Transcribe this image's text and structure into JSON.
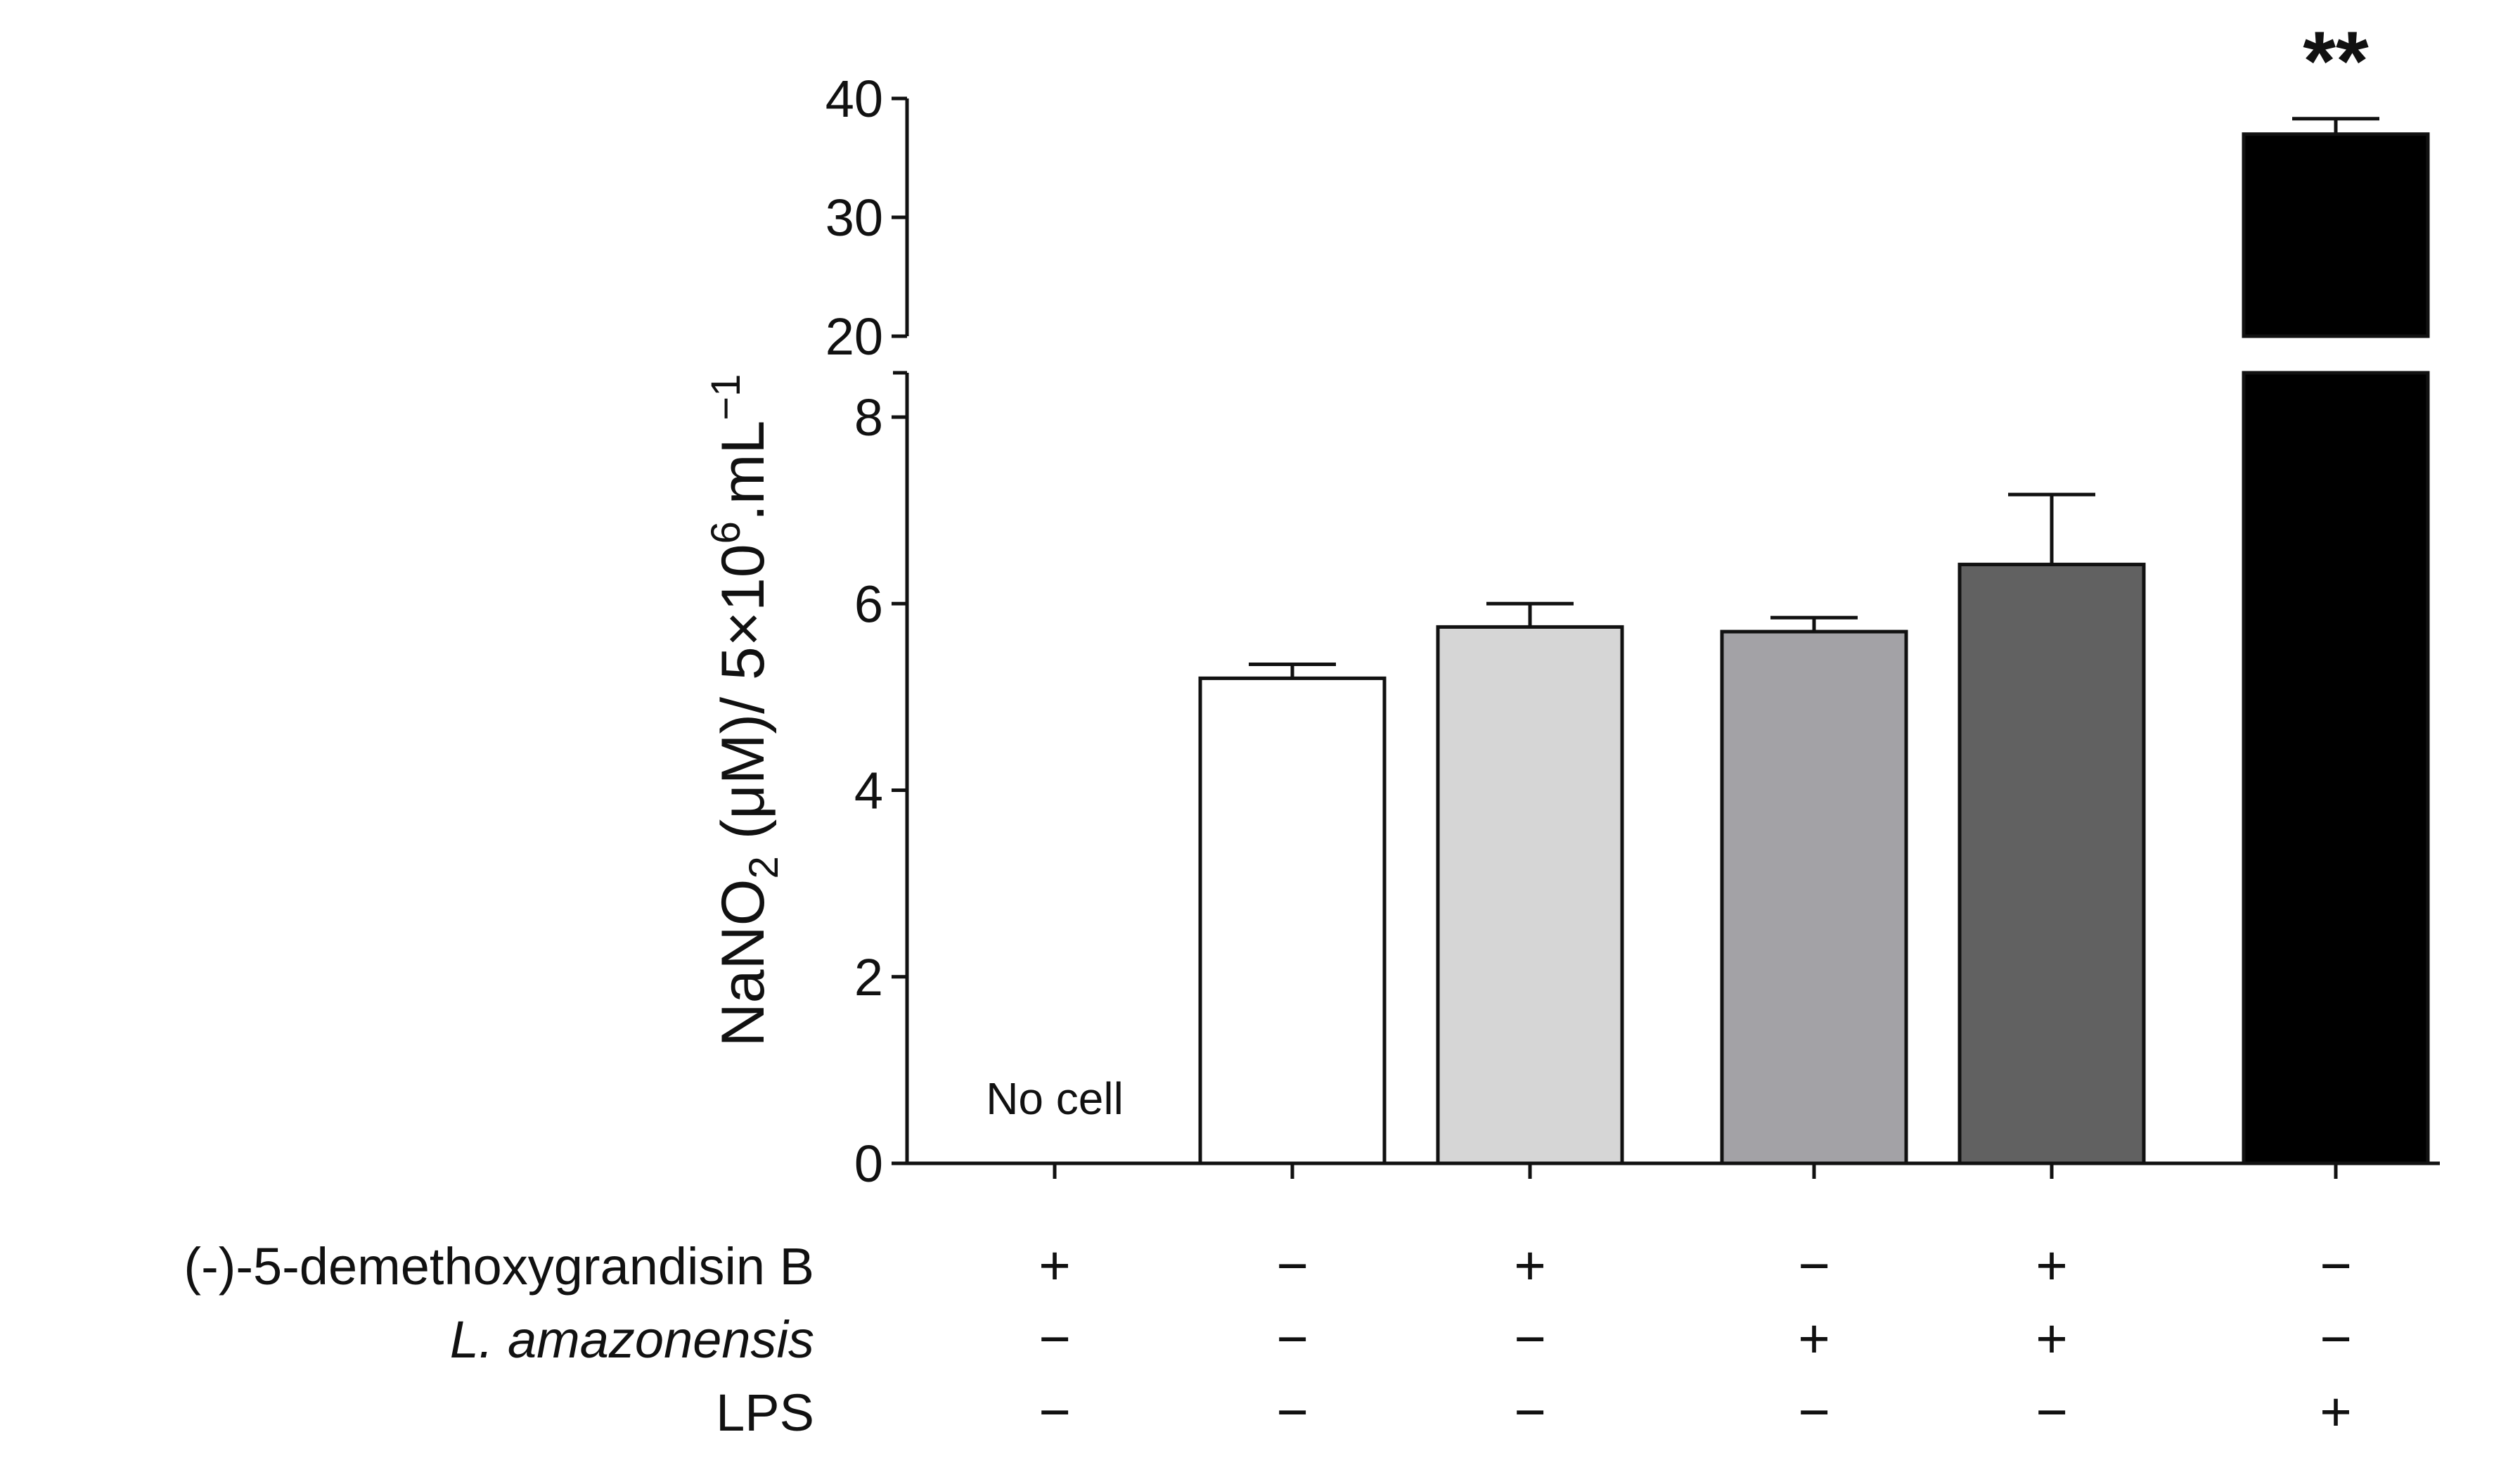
{
  "chart_data": {
    "type": "bar",
    "ylabel": "NaNO₂ (μM)/ 5×10⁶.mL⁻¹",
    "ylabel_parts": {
      "pre": "NaNO",
      "sub": "2",
      "mid": " (μM)/ 5×10",
      "sup1": "6",
      "mid2": ".mL",
      "sup2": "−1"
    },
    "axis_break": true,
    "lower_ylim": [
      0,
      8.5
    ],
    "upper_ylim": [
      20,
      40
    ],
    "lower_ticks": [
      "0",
      "2",
      "4",
      "6",
      "8"
    ],
    "upper_ticks": [
      "20",
      "30",
      "40"
    ],
    "lower_tick_values": [
      0,
      2,
      4,
      6,
      8
    ],
    "upper_tick_values": [
      20,
      30,
      40
    ],
    "bars": [
      {
        "name": "no-cell",
        "value": 0,
        "error": 0,
        "color": "#ffffff",
        "annotation": "No cell",
        "significance": ""
      },
      {
        "name": "control",
        "value": 5.2,
        "error": 0.15,
        "color": "#ffffff",
        "annotation": "",
        "significance": ""
      },
      {
        "name": "compound",
        "value": 5.75,
        "error": 0.25,
        "color": "#d6d6d6",
        "annotation": "",
        "significance": ""
      },
      {
        "name": "l-amazonensis",
        "value": 5.7,
        "error": 0.15,
        "color": "#a3a2a6",
        "annotation": "",
        "significance": ""
      },
      {
        "name": "compound-plus-l-amazonensis",
        "value": 6.42,
        "error": 0.75,
        "color": "#616161",
        "annotation": "",
        "significance": ""
      },
      {
        "name": "lps",
        "value": 37,
        "error": 1.3,
        "color": "#000000",
        "annotation": "",
        "significance": "**"
      }
    ],
    "conditions": [
      {
        "label": "(-)-5-demethoxygrandisin B",
        "italic": false,
        "values": [
          "+",
          "−",
          "+",
          "−",
          "+",
          "−"
        ]
      },
      {
        "label": "L. amazonensis",
        "italic": true,
        "values": [
          "−",
          "−",
          "−",
          "+",
          "+",
          "−"
        ]
      },
      {
        "label": "LPS",
        "italic": false,
        "values": [
          "−",
          "−",
          "−",
          "−",
          "−",
          "+"
        ]
      }
    ]
  }
}
